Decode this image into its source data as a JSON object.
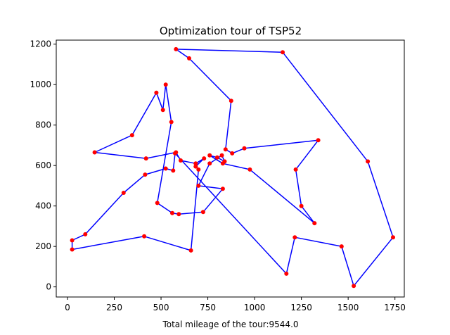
{
  "chart_data": {
    "type": "line",
    "title": "Optimization tour of TSP52",
    "xlabel": "Total mileage of the tour:9544.0",
    "ylabel": "",
    "xlim": [
      -60,
      1800
    ],
    "ylim": [
      -50,
      1220
    ],
    "xticks": [
      0,
      250,
      500,
      750,
      1000,
      1250,
      1500,
      1750
    ],
    "yticks": [
      0,
      200,
      400,
      600,
      800,
      1000,
      1200
    ],
    "grid": false,
    "line_color": "#0000ff",
    "marker_color": "#ff0000",
    "closed": true,
    "tour": [
      [
        580,
        1175
      ],
      [
        650,
        1130
      ],
      [
        875,
        920
      ],
      [
        845,
        680
      ],
      [
        880,
        660
      ],
      [
        945,
        685
      ],
      [
        1340,
        725
      ],
      [
        1220,
        580
      ],
      [
        1250,
        400
      ],
      [
        1320,
        315
      ],
      [
        975,
        580
      ],
      [
        830,
        610
      ],
      [
        760,
        650
      ],
      [
        800,
        640
      ],
      [
        840,
        620
      ],
      [
        825,
        650
      ],
      [
        760,
        610
      ],
      [
        700,
        500
      ],
      [
        830,
        485
      ],
      [
        725,
        370
      ],
      [
        595,
        360
      ],
      [
        560,
        365
      ],
      [
        480,
        415
      ],
      [
        555,
        815
      ],
      [
        525,
        1000
      ],
      [
        510,
        875
      ],
      [
        475,
        960
      ],
      [
        345,
        750
      ],
      [
        145,
        665
      ],
      [
        420,
        635
      ],
      [
        580,
        665
      ],
      [
        605,
        625
      ],
      [
        685,
        610
      ],
      [
        730,
        635
      ],
      [
        685,
        595
      ],
      [
        700,
        580
      ],
      [
        660,
        180
      ],
      [
        410,
        250
      ],
      [
        25,
        185
      ],
      [
        25,
        230
      ],
      [
        95,
        260
      ],
      [
        300,
        465
      ],
      [
        415,
        555
      ],
      [
        525,
        585
      ],
      [
        565,
        575
      ],
      [
        575,
        660
      ],
      [
        1170,
        65
      ],
      [
        1215,
        245
      ],
      [
        1465,
        200
      ],
      [
        1530,
        5
      ],
      [
        1740,
        245
      ],
      [
        1605,
        620
      ],
      [
        1150,
        1160
      ]
    ]
  }
}
